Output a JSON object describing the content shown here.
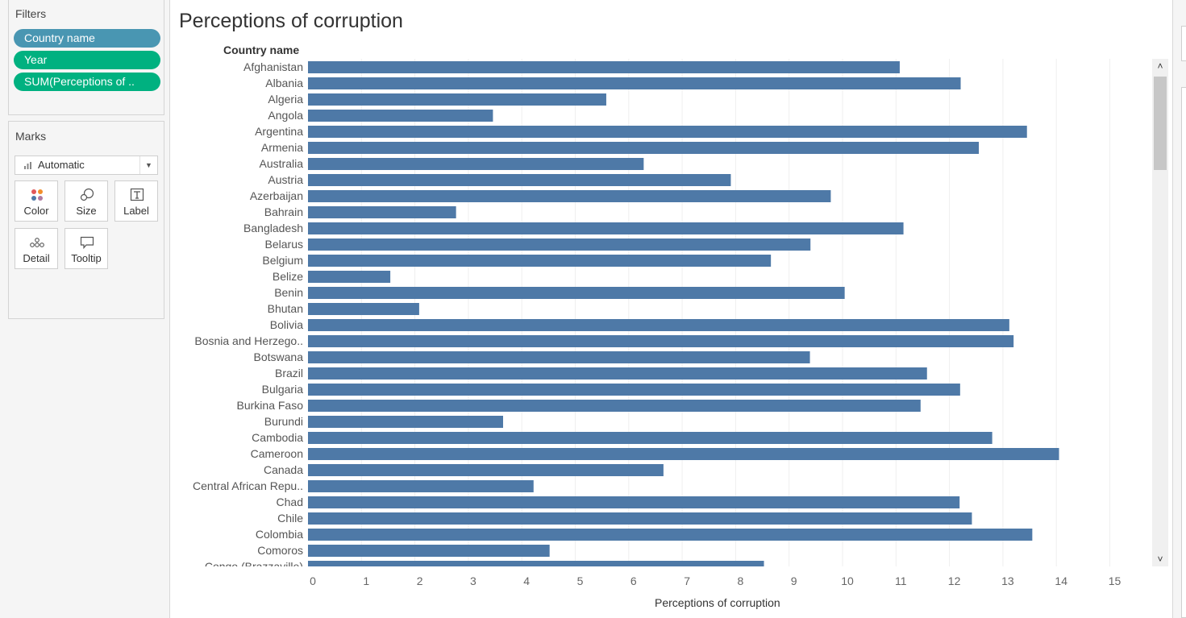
{
  "filters": {
    "title": "Filters",
    "pills": [
      {
        "label": "Country name",
        "color": "#4996b2"
      },
      {
        "label": "Year",
        "color": "#00b180"
      },
      {
        "label": "SUM(Perceptions of ..",
        "color": "#00b180"
      }
    ]
  },
  "marks": {
    "title": "Marks",
    "mark_type": "Automatic",
    "buttons": [
      {
        "label": "Color",
        "icon": "color-icon"
      },
      {
        "label": "Size",
        "icon": "size-icon"
      },
      {
        "label": "Label",
        "icon": "label-icon"
      },
      {
        "label": "Detail",
        "icon": "detail-icon"
      },
      {
        "label": "Tooltip",
        "icon": "tooltip-icon"
      }
    ]
  },
  "sheet": {
    "title": "Perceptions of corruption",
    "row_header": "Country name"
  },
  "chart_data": {
    "type": "bar",
    "orientation": "horizontal",
    "xlabel": "Perceptions of corruption",
    "xlim": [
      0,
      15.6
    ],
    "xticks": [
      0,
      1,
      2,
      3,
      4,
      5,
      6,
      7,
      8,
      9,
      10,
      11,
      12,
      13,
      14,
      15
    ],
    "bar_color": "#4e79a7",
    "grid": "vertical",
    "categories": [
      "Afghanistan",
      "Albania",
      "Algeria",
      "Angola",
      "Argentina",
      "Armenia",
      "Australia",
      "Austria",
      "Azerbaijan",
      "Bahrain",
      "Bangladesh",
      "Belarus",
      "Belgium",
      "Belize",
      "Benin",
      "Bhutan",
      "Bolivia",
      "Bosnia and Herzego..",
      "Botswana",
      "Brazil",
      "Bulgaria",
      "Burkina Faso",
      "Burundi",
      "Cambodia",
      "Cameroon",
      "Canada",
      "Central African Repu..",
      "Chad",
      "Chile",
      "Colombia",
      "Comoros",
      "Congo (Brazzaville)"
    ],
    "values": [
      11.07,
      12.21,
      5.58,
      3.46,
      13.45,
      12.55,
      6.28,
      7.91,
      9.78,
      2.77,
      11.14,
      9.4,
      8.66,
      1.54,
      10.04,
      2.08,
      13.12,
      13.2,
      9.39,
      11.58,
      12.2,
      11.46,
      3.65,
      12.8,
      14.05,
      6.65,
      4.22,
      12.19,
      12.42,
      13.55,
      4.52,
      8.53
    ]
  },
  "scrollbar": {
    "up_icon": "chevron-up-icon",
    "down_icon": "chevron-down-icon"
  }
}
